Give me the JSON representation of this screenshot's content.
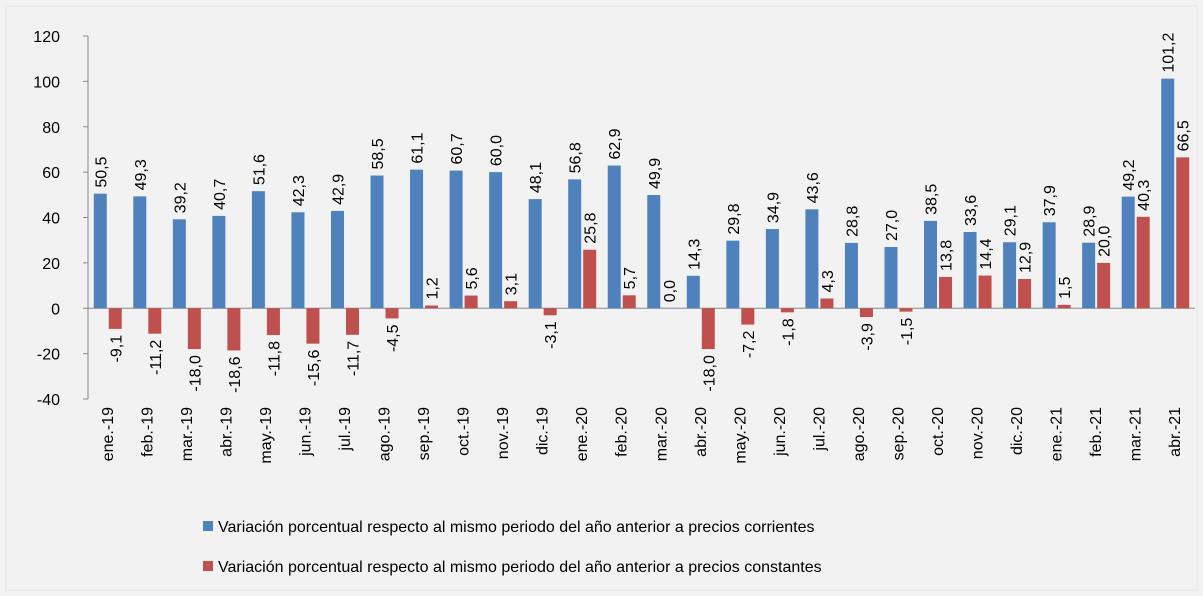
{
  "chart_data": {
    "type": "bar",
    "categories": [
      "ene.-19",
      "feb.-19",
      "mar.-19",
      "abr.-19",
      "may.-19",
      "jun.-19",
      "jul.-19",
      "ago.-19",
      "sep.-19",
      "oct.-19",
      "nov.-19",
      "dic.-19",
      "ene.-20",
      "feb.-20",
      "mar.-20",
      "abr.-20",
      "may.-20",
      "jun.-20",
      "jul.-20",
      "ago.-20",
      "sep.-20",
      "oct.-20",
      "nov.-20",
      "dic.-20",
      "ene.-21",
      "feb.-21",
      "mar.-21",
      "abr.-21"
    ],
    "series": [
      {
        "name": "Variación porcentual respecto al mismo periodo del año anterior a precios corrientes",
        "color": "#4f81bd",
        "values": [
          50.5,
          49.3,
          39.2,
          40.7,
          51.6,
          42.3,
          42.9,
          58.5,
          61.1,
          60.7,
          60.0,
          48.1,
          56.8,
          62.9,
          49.9,
          14.3,
          29.8,
          34.9,
          43.6,
          28.8,
          27.0,
          38.5,
          33.6,
          29.1,
          37.9,
          28.9,
          49.2,
          101.2
        ],
        "value_labels": [
          "50,5",
          "49,3",
          "39,2",
          "40,7",
          "51,6",
          "42,3",
          "42,9",
          "58,5",
          "61,1",
          "60,7",
          "60,0",
          "48,1",
          "56,8",
          "62,9",
          "49,9",
          "14,3",
          "29,8",
          "34,9",
          "43,6",
          "28,8",
          "27,0",
          "38,5",
          "33,6",
          "29,1",
          "37,9",
          "28,9",
          "49,2",
          "101,2"
        ]
      },
      {
        "name": "Variación porcentual respecto al mismo periodo del año anterior a precios constantes",
        "color": "#c0504d",
        "values": [
          -9.1,
          -11.2,
          -18.0,
          -18.6,
          -11.8,
          -15.6,
          -11.7,
          -4.5,
          1.2,
          5.6,
          3.1,
          -3.1,
          25.8,
          5.7,
          0.0,
          -18.0,
          -7.2,
          -1.8,
          4.3,
          -3.9,
          -1.5,
          13.8,
          14.4,
          12.9,
          1.5,
          20.0,
          40.3,
          66.5
        ],
        "value_labels": [
          "-9,1",
          "-11,2",
          "-18,0",
          "-18,6",
          "-11,8",
          "-15,6",
          "-11,7",
          "-4,5",
          "1,2",
          "5,6",
          "3,1",
          "-3,1",
          "25,8",
          "5,7",
          "0,0",
          "-18,0",
          "-7,2",
          "-1,8",
          "4,3",
          "-3,9",
          "-1,5",
          "13,8",
          "14,4",
          "12,9",
          "1,5",
          "20,0",
          "40,3",
          "66,5"
        ]
      }
    ],
    "ylim": [
      -40,
      120
    ],
    "yticks": [
      -40,
      -20,
      0,
      20,
      40,
      60,
      80,
      100,
      120
    ],
    "legend": "bottom"
  }
}
